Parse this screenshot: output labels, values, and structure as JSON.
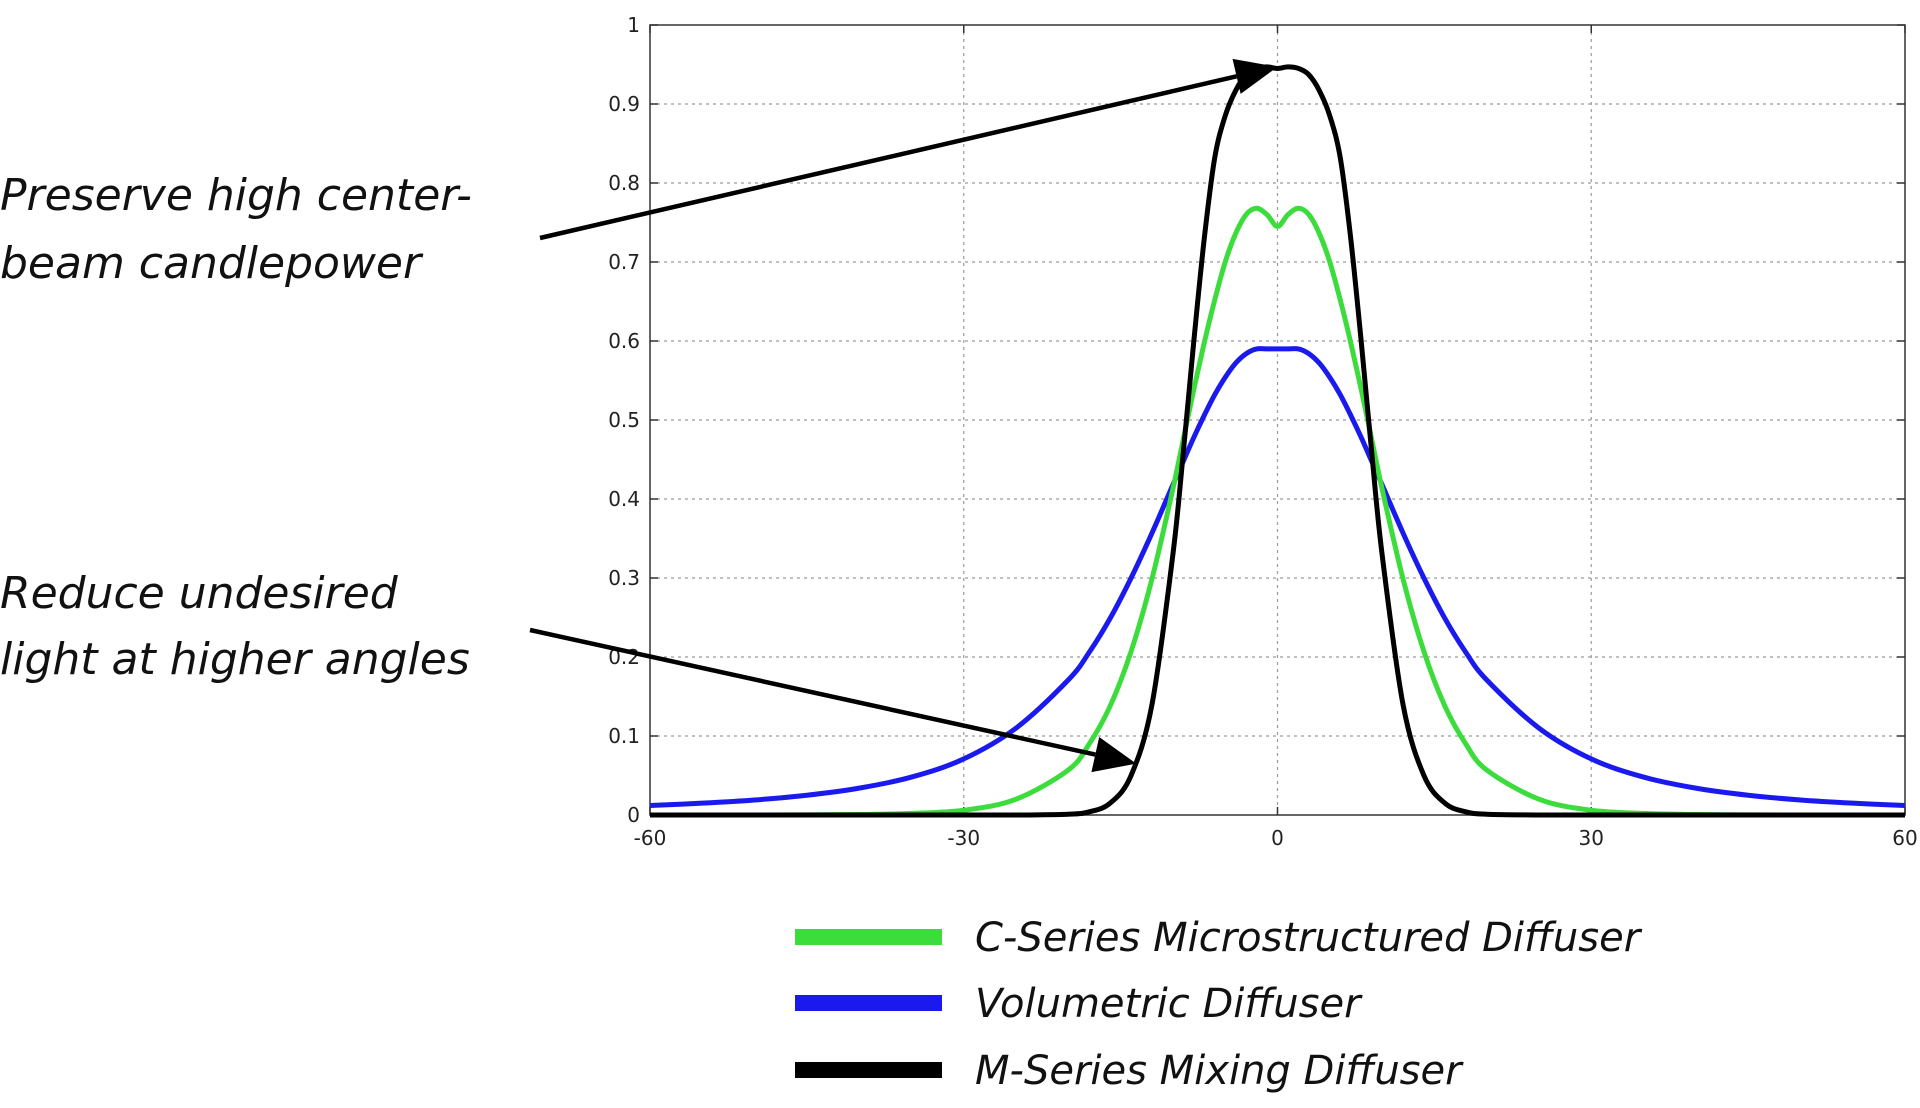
{
  "chart_data": {
    "type": "line",
    "title": "",
    "xlabel": "",
    "ylabel": "",
    "xlim": [
      -60,
      60
    ],
    "ylim": [
      0,
      1
    ],
    "grid": true,
    "x_ticks": [
      -60,
      -30,
      0,
      30,
      60
    ],
    "x_tick_labels": [
      "-60",
      "-30",
      "0",
      "30",
      "60"
    ],
    "y_ticks": [
      0,
      0.1,
      0.2,
      0.3,
      0.4,
      0.5,
      0.6,
      0.7,
      0.8,
      0.9,
      1
    ],
    "y_tick_labels": [
      "0",
      "0.1",
      "0.2",
      "0.3",
      "0.4",
      "0.5",
      "0.6",
      "0.7",
      "0.8",
      "0.9",
      "1"
    ],
    "legend_position": "bottom",
    "x": [
      -60,
      -55,
      -50,
      -45,
      -40,
      -35,
      -30,
      -25,
      -20,
      -18,
      -16,
      -14,
      -12,
      -10,
      -9,
      -8,
      -7,
      -6,
      -5,
      -4,
      -3,
      -2,
      -1,
      0,
      1,
      2,
      3,
      4,
      5,
      6,
      7,
      8,
      9,
      10,
      12,
      14,
      16,
      18,
      20,
      25,
      30,
      35,
      40,
      45,
      50,
      55,
      60
    ],
    "series": [
      {
        "name": "C-Series Microstructured Diffuser",
        "color": "#3ddc3d",
        "values": [
          0,
          0,
          0,
          0.0002,
          0.0006,
          0.002,
          0.006,
          0.02,
          0.057,
          0.09,
          0.138,
          0.207,
          0.299,
          0.413,
          0.476,
          0.539,
          0.598,
          0.652,
          0.7,
          0.736,
          0.76,
          0.768,
          0.76,
          0.745,
          0.76,
          0.768,
          0.76,
          0.736,
          0.7,
          0.652,
          0.598,
          0.539,
          0.476,
          0.413,
          0.299,
          0.207,
          0.138,
          0.09,
          0.057,
          0.02,
          0.006,
          0.002,
          0.0006,
          0.0002,
          0,
          0,
          0
        ]
      },
      {
        "name": "Volumetric Diffuser",
        "color": "#1a1aee",
        "values": [
          0.012,
          0.015,
          0.019,
          0.025,
          0.034,
          0.048,
          0.071,
          0.11,
          0.171,
          0.206,
          0.249,
          0.3,
          0.357,
          0.418,
          0.448,
          0.478,
          0.506,
          0.532,
          0.554,
          0.572,
          0.584,
          0.59,
          0.59,
          0.59,
          0.59,
          0.59,
          0.584,
          0.572,
          0.554,
          0.532,
          0.506,
          0.478,
          0.448,
          0.418,
          0.357,
          0.3,
          0.249,
          0.206,
          0.171,
          0.11,
          0.071,
          0.048,
          0.034,
          0.025,
          0.019,
          0.015,
          0.012
        ]
      },
      {
        "name": "M-Series Mixing Diffuser",
        "color": "#000000",
        "values": [
          0,
          0,
          0,
          0,
          0,
          0,
          0,
          0,
          0.001,
          0.004,
          0.015,
          0.05,
          0.14,
          0.33,
          0.46,
          0.6,
          0.73,
          0.832,
          0.885,
          0.917,
          0.937,
          0.945,
          0.947,
          0.945,
          0.947,
          0.945,
          0.937,
          0.917,
          0.885,
          0.832,
          0.73,
          0.6,
          0.46,
          0.33,
          0.14,
          0.05,
          0.015,
          0.004,
          0.001,
          0,
          0,
          0,
          0,
          0,
          0,
          0,
          0
        ]
      }
    ],
    "annotations": [
      {
        "lines": [
          "Preserve high center-",
          "beam candlepower"
        ],
        "arrow_target": [
          0,
          0.947
        ]
      },
      {
        "lines": [
          "Reduce undesired",
          "light at higher angles"
        ],
        "arrow_target": [
          -13.5,
          0.065
        ]
      }
    ]
  }
}
